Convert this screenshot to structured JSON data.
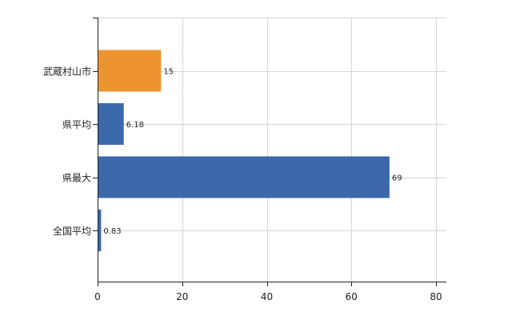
{
  "chart_data": {
    "type": "bar",
    "orientation": "horizontal",
    "categories": [
      "武蔵村山市",
      "県平均",
      "県最大",
      "全国平均"
    ],
    "values": [
      15,
      6.18,
      69,
      0.83
    ],
    "value_labels": [
      "15",
      "6.18",
      "69",
      "0.83"
    ],
    "xlim": [
      0,
      80
    ],
    "xticks": [
      0,
      20,
      40,
      60,
      80
    ],
    "xtick_labels": [
      "0",
      "20",
      "40",
      "60",
      "80"
    ],
    "grid": true,
    "legend": "none",
    "colors": {
      "highlight": "#ED9431",
      "default": "#3A68AA",
      "grid": "#D5D5D5",
      "axis": "#222222"
    },
    "highlight_index": 0
  }
}
